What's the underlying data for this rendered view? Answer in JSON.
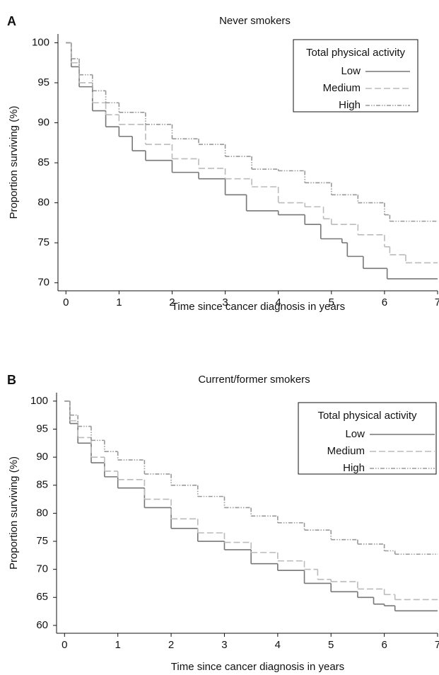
{
  "chart_data": [
    {
      "type": "line",
      "panel": "A",
      "title": "Never smokers",
      "x_label": "Time since cancer diagnosis in years",
      "y_label": "Proportion surviving (%)",
      "xlim": [
        -0.15,
        7
      ],
      "ylim": [
        69,
        101.1
      ],
      "xticks": [
        0,
        1,
        2,
        3,
        4,
        5,
        6,
        7
      ],
      "yticks": [
        70,
        75,
        80,
        85,
        90,
        95,
        100
      ],
      "legend_title": "Total physical activity",
      "legend": "top-right",
      "step": true,
      "series": [
        {
          "name": "Low",
          "color": "#777777",
          "line_style": "solid",
          "x": [
            0,
            0.1,
            0.25,
            0.5,
            0.75,
            1,
            1.25,
            1.5,
            2,
            2.5,
            3,
            3.4,
            4,
            4.5,
            4.8,
            5.2,
            5.3,
            5.6,
            6.05,
            7
          ],
          "values": [
            100,
            97,
            94.5,
            91.5,
            89.5,
            88.3,
            86.5,
            85.3,
            83.8,
            83,
            81,
            79,
            78.5,
            77.3,
            75.5,
            75,
            73.3,
            71.8,
            70.5,
            70.5
          ]
        },
        {
          "name": "Medium",
          "color": "#bbbbbb",
          "line_style": "dashed",
          "x": [
            0,
            0.1,
            0.25,
            0.5,
            0.75,
            1,
            1.5,
            2,
            2.5,
            3,
            3.5,
            4,
            4.5,
            4.85,
            5,
            5.5,
            6,
            6.1,
            6.4,
            7
          ],
          "values": [
            100,
            97.5,
            95,
            92.5,
            91,
            89.8,
            87.3,
            85.5,
            84.3,
            83,
            82,
            80,
            79.5,
            78,
            77.3,
            76,
            74.5,
            73.5,
            72.5,
            72.5
          ]
        },
        {
          "name": "High",
          "color": "#999999",
          "line_style": "dashdot",
          "x": [
            0,
            0.1,
            0.25,
            0.5,
            0.75,
            1,
            1.5,
            2,
            2.5,
            3,
            3.5,
            4,
            4.5,
            5,
            5.5,
            6,
            6.1,
            7
          ],
          "values": [
            100,
            98,
            96,
            94,
            92.5,
            91.3,
            89.8,
            88,
            87.3,
            85.8,
            84.2,
            84,
            82.5,
            81,
            80,
            78.5,
            77.7,
            77.7
          ]
        }
      ]
    },
    {
      "type": "line",
      "panel": "B",
      "title": "Current/former smokers",
      "x_label": "Time since cancer diagnosis in years",
      "y_label": "Proportion surviving (%)",
      "xlim": [
        -0.15,
        7
      ],
      "ylim": [
        58.6,
        101.5
      ],
      "xticks": [
        0,
        1,
        2,
        3,
        4,
        5,
        6,
        7
      ],
      "yticks": [
        60,
        65,
        70,
        75,
        80,
        85,
        90,
        95,
        100
      ],
      "legend_title": "Total physical activity",
      "legend": "top-right",
      "step": true,
      "series": [
        {
          "name": "Low",
          "color": "#777777",
          "line_style": "solid",
          "x": [
            0,
            0.1,
            0.25,
            0.5,
            0.75,
            1,
            1.5,
            2,
            2.5,
            3,
            3.5,
            4,
            4.5,
            5,
            5.5,
            5.8,
            6,
            6.2,
            7
          ],
          "values": [
            100,
            96,
            92.5,
            89,
            86.5,
            84.5,
            81,
            77.3,
            75,
            73.5,
            71,
            69.8,
            67.5,
            66,
            65,
            63.8,
            63.5,
            62.6,
            62.6
          ]
        },
        {
          "name": "Medium",
          "color": "#bbbbbb",
          "line_style": "dashed",
          "x": [
            0,
            0.1,
            0.25,
            0.5,
            0.75,
            1,
            1.5,
            2,
            2.5,
            3,
            3.5,
            4,
            4.5,
            4.75,
            5,
            5.5,
            6,
            6.2,
            7
          ],
          "values": [
            100,
            96.5,
            93.5,
            90,
            87.5,
            86,
            82.5,
            79,
            76.5,
            74.8,
            73,
            71.5,
            70,
            68.2,
            67.8,
            66.5,
            65.5,
            64.6,
            64.6
          ]
        },
        {
          "name": "High",
          "color": "#999999",
          "line_style": "dashdot",
          "x": [
            0,
            0.1,
            0.25,
            0.5,
            0.75,
            1,
            1.5,
            2,
            2.5,
            3,
            3.5,
            4,
            4.5,
            5,
            5.5,
            6,
            6.2,
            7
          ],
          "values": [
            100,
            97.5,
            95.5,
            93,
            91,
            89.5,
            87,
            85,
            83,
            81,
            79.5,
            78.3,
            77,
            75.3,
            74.5,
            73.3,
            72.7,
            72.7
          ]
        }
      ]
    }
  ]
}
